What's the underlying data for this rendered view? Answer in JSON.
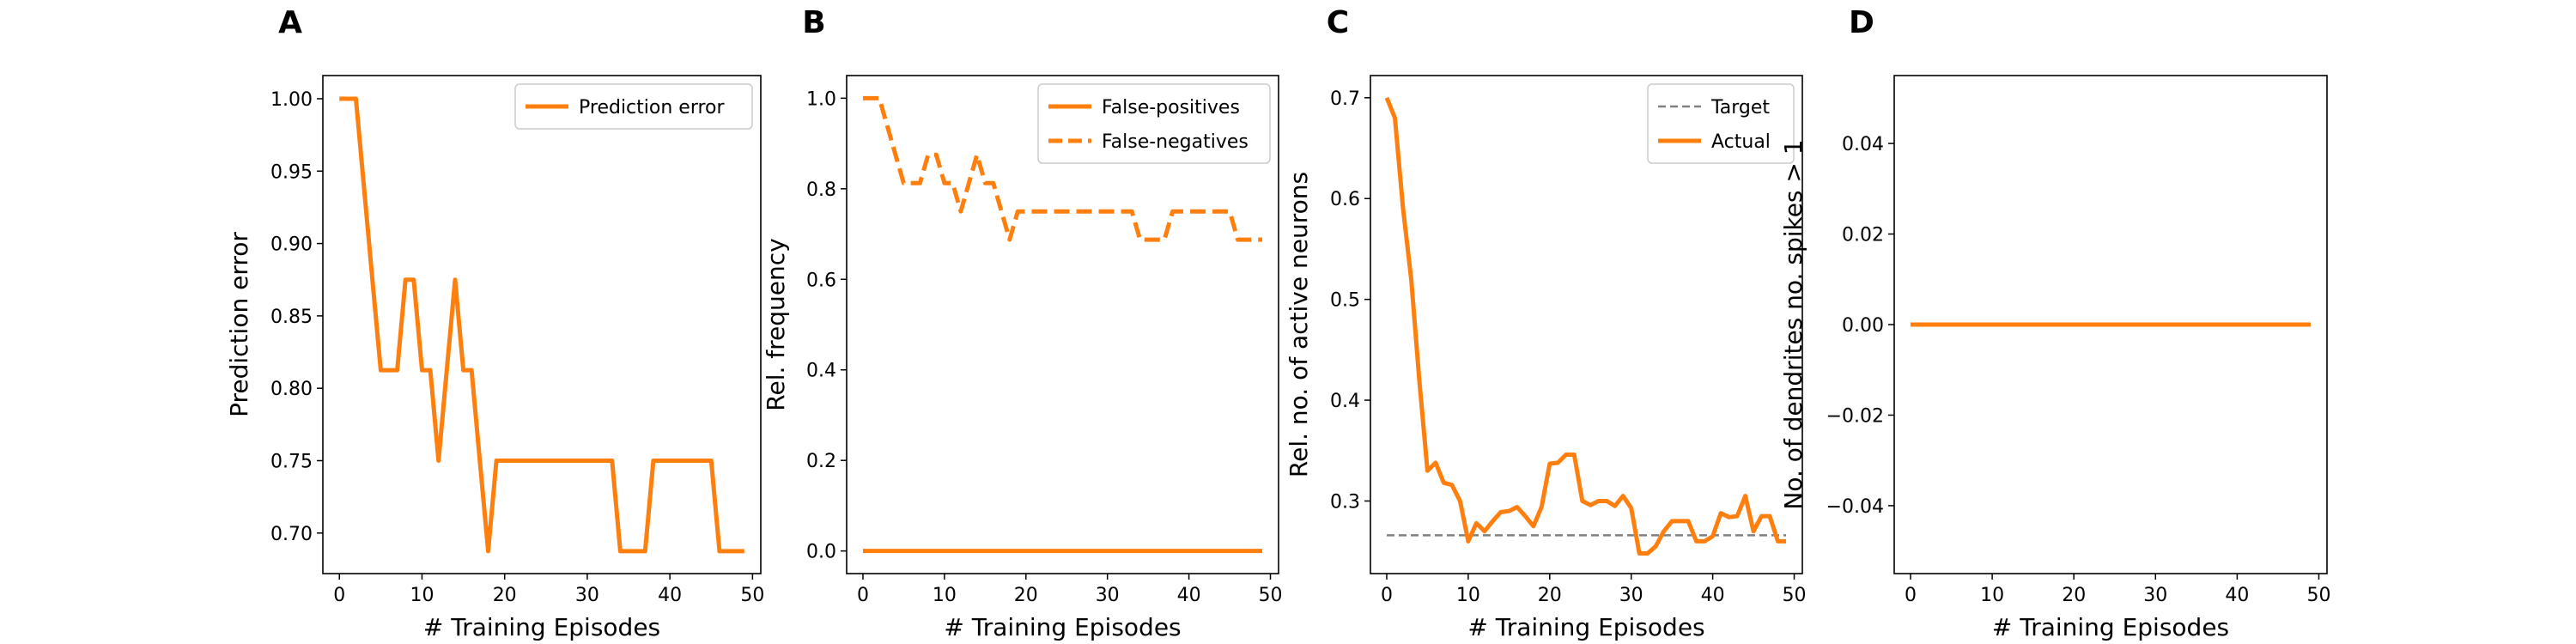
{
  "colors": {
    "orange": "#ff7f0e",
    "target_gray": "#808080",
    "frame": "#000000"
  },
  "chart_data": [
    {
      "panel": "A",
      "type": "line",
      "xlabel": "# Training Episodes",
      "ylabel": "Prediction error",
      "xlim": [
        -2,
        51
      ],
      "ylim": [
        0.672,
        1.016
      ],
      "xticks": [
        0,
        10,
        20,
        30,
        40,
        50
      ],
      "yticks": [
        0.7,
        0.75,
        0.8,
        0.85,
        0.9,
        0.95,
        1.0
      ],
      "ytick_labels": [
        "0.70",
        "0.75",
        "0.80",
        "0.85",
        "0.90",
        "0.95",
        "1.00"
      ],
      "legend_position": "top-right",
      "series": [
        {
          "name": "Prediction error",
          "style": "solid",
          "x": [
            0,
            1,
            2,
            3,
            4,
            5,
            6,
            7,
            8,
            9,
            10,
            11,
            12,
            13,
            14,
            15,
            16,
            17,
            18,
            19,
            20,
            21,
            22,
            23,
            24,
            25,
            26,
            27,
            28,
            29,
            30,
            31,
            32,
            33,
            34,
            35,
            36,
            37,
            38,
            39,
            40,
            41,
            42,
            43,
            44,
            45,
            46,
            47,
            48,
            49
          ],
          "values": [
            1.0,
            1.0,
            1.0,
            0.9375,
            0.875,
            0.8125,
            0.8125,
            0.8125,
            0.875,
            0.875,
            0.8125,
            0.8125,
            0.75,
            0.8125,
            0.875,
            0.8125,
            0.8125,
            0.75,
            0.6875,
            0.75,
            0.75,
            0.75,
            0.75,
            0.75,
            0.75,
            0.75,
            0.75,
            0.75,
            0.75,
            0.75,
            0.75,
            0.75,
            0.75,
            0.75,
            0.6875,
            0.6875,
            0.6875,
            0.6875,
            0.75,
            0.75,
            0.75,
            0.75,
            0.75,
            0.75,
            0.75,
            0.75,
            0.6875,
            0.6875,
            0.6875,
            0.6875
          ]
        }
      ]
    },
    {
      "panel": "B",
      "type": "line",
      "xlabel": "# Training Episodes",
      "ylabel": "Rel. frequency",
      "xlim": [
        -2,
        51
      ],
      "ylim": [
        -0.05,
        1.05
      ],
      "xticks": [
        0,
        10,
        20,
        30,
        40,
        50
      ],
      "yticks": [
        0.0,
        0.2,
        0.4,
        0.6,
        0.8,
        1.0
      ],
      "ytick_labels": [
        "0.0",
        "0.2",
        "0.4",
        "0.6",
        "0.8",
        "1.0"
      ],
      "legend_position": "top-right",
      "series": [
        {
          "name": "False-positives",
          "style": "solid",
          "x": [
            0,
            1,
            2,
            3,
            4,
            5,
            6,
            7,
            8,
            9,
            10,
            11,
            12,
            13,
            14,
            15,
            16,
            17,
            18,
            19,
            20,
            21,
            22,
            23,
            24,
            25,
            26,
            27,
            28,
            29,
            30,
            31,
            32,
            33,
            34,
            35,
            36,
            37,
            38,
            39,
            40,
            41,
            42,
            43,
            44,
            45,
            46,
            47,
            48,
            49
          ],
          "values": [
            0,
            0,
            0,
            0,
            0,
            0,
            0,
            0,
            0,
            0,
            0,
            0,
            0,
            0,
            0,
            0,
            0,
            0,
            0,
            0,
            0,
            0,
            0,
            0,
            0,
            0,
            0,
            0,
            0,
            0,
            0,
            0,
            0,
            0,
            0,
            0,
            0,
            0,
            0,
            0,
            0,
            0,
            0,
            0,
            0,
            0,
            0,
            0,
            0,
            0
          ]
        },
        {
          "name": "False-negatives",
          "style": "dashed",
          "x": [
            0,
            1,
            2,
            3,
            4,
            5,
            6,
            7,
            8,
            9,
            10,
            11,
            12,
            13,
            14,
            15,
            16,
            17,
            18,
            19,
            20,
            21,
            22,
            23,
            24,
            25,
            26,
            27,
            28,
            29,
            30,
            31,
            32,
            33,
            34,
            35,
            36,
            37,
            38,
            39,
            40,
            41,
            42,
            43,
            44,
            45,
            46,
            47,
            48,
            49
          ],
          "values": [
            1.0,
            1.0,
            1.0,
            0.9375,
            0.875,
            0.8125,
            0.8125,
            0.8125,
            0.875,
            0.875,
            0.8125,
            0.8125,
            0.75,
            0.8125,
            0.875,
            0.8125,
            0.8125,
            0.75,
            0.6875,
            0.75,
            0.75,
            0.75,
            0.75,
            0.75,
            0.75,
            0.75,
            0.75,
            0.75,
            0.75,
            0.75,
            0.75,
            0.75,
            0.75,
            0.75,
            0.6875,
            0.6875,
            0.6875,
            0.6875,
            0.75,
            0.75,
            0.75,
            0.75,
            0.75,
            0.75,
            0.75,
            0.75,
            0.6875,
            0.6875,
            0.6875,
            0.6875
          ]
        }
      ]
    },
    {
      "panel": "C",
      "type": "line",
      "xlabel": "# Training Episodes",
      "ylabel": "Rel. no. of active neurons",
      "xlim": [
        -2,
        51
      ],
      "ylim": [
        0.228,
        0.722
      ],
      "xticks": [
        0,
        10,
        20,
        30,
        40,
        50
      ],
      "yticks": [
        0.3,
        0.4,
        0.5,
        0.6,
        0.7
      ],
      "ytick_labels": [
        "0.3",
        "0.4",
        "0.5",
        "0.6",
        "0.7"
      ],
      "legend_position": "top-right",
      "series": [
        {
          "name": "Target",
          "style": "dashed",
          "x": [
            0,
            49
          ],
          "values": [
            0.266,
            0.266
          ]
        },
        {
          "name": "Actual",
          "style": "solid",
          "x": [
            0,
            1,
            2,
            3,
            4,
            5,
            6,
            7,
            8,
            9,
            10,
            11,
            12,
            13,
            14,
            15,
            16,
            17,
            18,
            19,
            20,
            21,
            22,
            23,
            24,
            25,
            26,
            27,
            28,
            29,
            30,
            31,
            32,
            33,
            34,
            35,
            36,
            37,
            38,
            39,
            40,
            41,
            42,
            43,
            44,
            45,
            46,
            47,
            48,
            49
          ],
          "values": [
            0.7,
            0.68,
            0.59,
            0.52,
            0.42,
            0.33,
            0.338,
            0.318,
            0.316,
            0.3,
            0.26,
            0.278,
            0.27,
            0.28,
            0.289,
            0.29,
            0.294,
            0.285,
            0.275,
            0.294,
            0.337,
            0.338,
            0.346,
            0.346,
            0.3,
            0.296,
            0.3,
            0.3,
            0.295,
            0.305,
            0.293,
            0.248,
            0.248,
            0.255,
            0.27,
            0.28,
            0.28,
            0.28,
            0.26,
            0.26,
            0.265,
            0.288,
            0.284,
            0.285,
            0.305,
            0.27,
            0.285,
            0.285,
            0.26,
            0.26
          ]
        }
      ]
    },
    {
      "panel": "D",
      "type": "line",
      "xlabel": "# Training Episodes",
      "ylabel": "No. of dendrites no. spikes > 1",
      "xlim": [
        -2,
        51
      ],
      "ylim": [
        -0.055,
        0.055
      ],
      "xticks": [
        0,
        10,
        20,
        30,
        40,
        50
      ],
      "yticks": [
        -0.04,
        -0.02,
        0.0,
        0.02,
        0.04
      ],
      "ytick_labels": [
        "−0.04",
        "−0.02",
        "0.00",
        "0.02",
        "0.04"
      ],
      "legend_position": "none",
      "series": [
        {
          "name": "",
          "style": "solid",
          "x": [
            0,
            1,
            2,
            3,
            4,
            5,
            6,
            7,
            8,
            9,
            10,
            11,
            12,
            13,
            14,
            15,
            16,
            17,
            18,
            19,
            20,
            21,
            22,
            23,
            24,
            25,
            26,
            27,
            28,
            29,
            30,
            31,
            32,
            33,
            34,
            35,
            36,
            37,
            38,
            39,
            40,
            41,
            42,
            43,
            44,
            45,
            46,
            47,
            48,
            49
          ],
          "values": [
            0,
            0,
            0,
            0,
            0,
            0,
            0,
            0,
            0,
            0,
            0,
            0,
            0,
            0,
            0,
            0,
            0,
            0,
            0,
            0,
            0,
            0,
            0,
            0,
            0,
            0,
            0,
            0,
            0,
            0,
            0,
            0,
            0,
            0,
            0,
            0,
            0,
            0,
            0,
            0,
            0,
            0,
            0,
            0,
            0,
            0,
            0,
            0,
            0,
            0
          ]
        }
      ]
    }
  ]
}
